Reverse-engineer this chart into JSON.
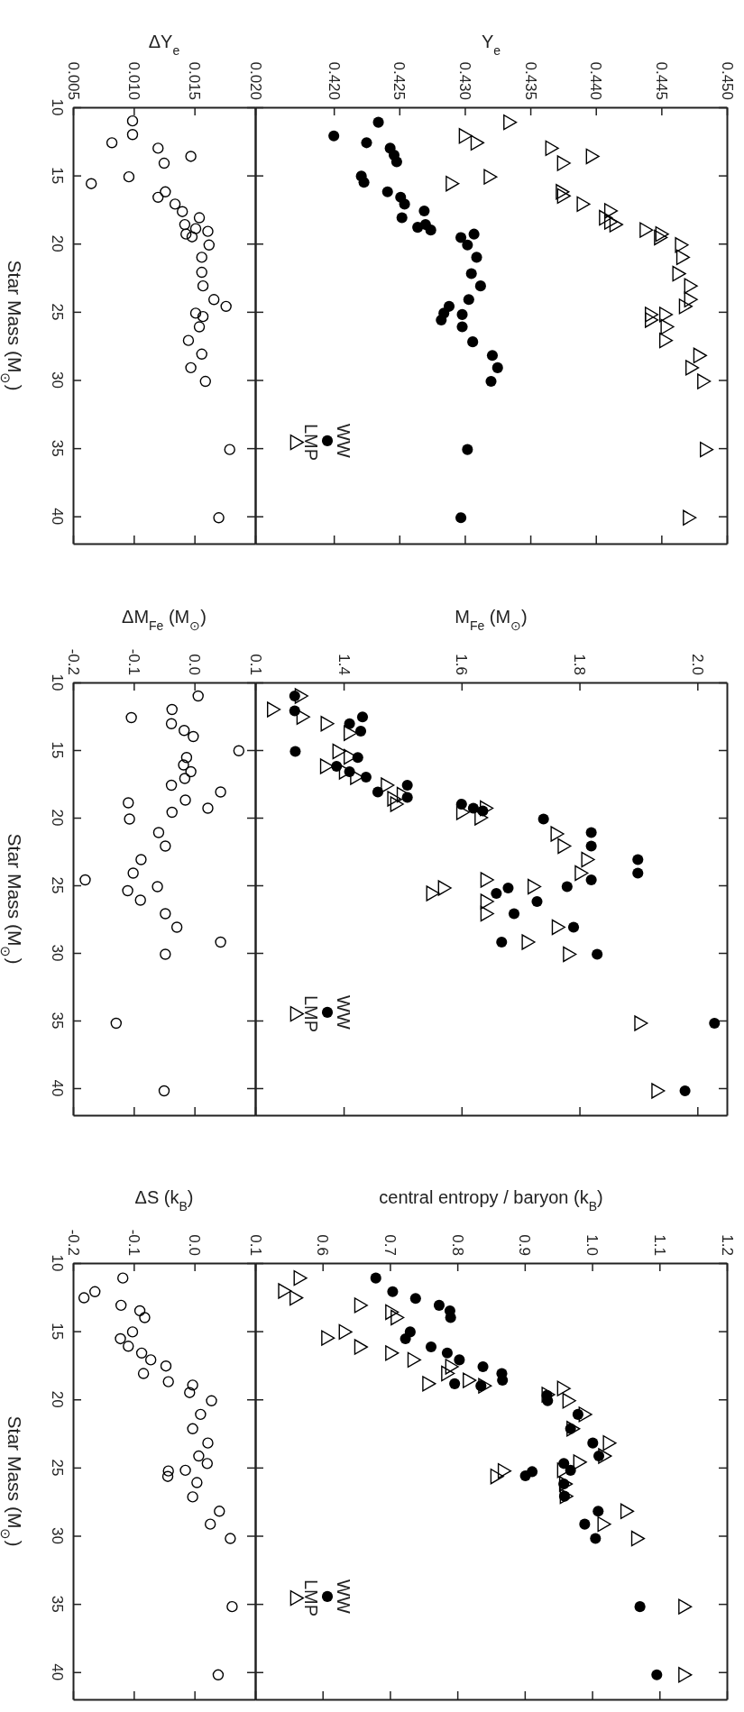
{
  "chart_data": [
    {
      "type": "scatter",
      "xlabel": "Y$_{e}$",
      "ylim": [
        42,
        10
      ],
      "yticks": [
        10,
        15,
        20,
        25,
        30,
        35,
        40
      ],
      "xlim": [
        0.414,
        0.45
      ],
      "xticks": [
        {
          "value": 0.42,
          "label": "0.420"
        },
        {
          "value": 0.425,
          "label": "0.425"
        },
        {
          "value": 0.43,
          "label": "0.430"
        },
        {
          "value": 0.435,
          "label": "0.435"
        },
        {
          "value": 0.44,
          "label": "0.440"
        },
        {
          "value": 0.445,
          "label": "0.445"
        },
        {
          "value": 0.45,
          "label": "0.450"
        }
      ],
      "tick_labels": "x",
      "legend": "bottom left",
      "series": [
        {
          "name": "WW",
          "color": "#000000",
          "marker": "circle",
          "values": [
            11.1,
            12.1,
            12.6,
            13.0,
            13.5,
            14.0,
            15.05,
            15.5,
            16.2,
            16.6,
            17.1,
            17.6,
            18.1,
            18.6,
            18.8,
            19.0,
            19.3,
            19.55,
            20.1,
            21.0,
            22.2,
            23.1,
            24.1,
            24.6,
            25.1,
            25.2,
            25.6,
            26.1,
            27.2,
            28.2,
            29.1,
            30.1,
            35.1,
            40.1
          ],
          "x": [
            0.4234,
            0.42,
            0.4225,
            0.4243,
            0.4246,
            0.4248,
            0.4221,
            0.4223,
            0.4241,
            0.4251,
            0.4254,
            0.4269,
            0.4252,
            0.427,
            0.4264,
            0.4274,
            0.4307,
            0.4297,
            0.4302,
            0.4309,
            0.4305,
            0.4312,
            0.4303,
            0.4288,
            0.4284,
            0.4298,
            0.4282,
            0.4298,
            0.4306,
            0.4321,
            0.4325,
            0.432,
            0.4302,
            0.4297
          ]
        },
        {
          "name": "LMP",
          "color": "#000000",
          "marker": "triangle",
          "values": [
            11.1,
            12.1,
            12.6,
            13.0,
            13.6,
            14.1,
            15.1,
            15.6,
            16.2,
            16.5,
            17.1,
            17.6,
            18.1,
            18.4,
            18.6,
            19.0,
            19.3,
            19.55,
            20.1,
            21.0,
            22.2,
            23.1,
            24.1,
            24.6,
            25.2,
            25.2,
            25.6,
            26.1,
            27.1,
            28.2,
            29.1,
            30.1,
            35.1,
            40.1
          ],
          "x": [
            0.4333,
            0.4299,
            0.4308,
            0.4365,
            0.4396,
            0.4374,
            0.4318,
            0.4289,
            0.4373,
            0.4374,
            0.4389,
            0.441,
            0.4406,
            0.441,
            0.4414,
            0.4437,
            0.4449,
            0.4448,
            0.4464,
            0.4465,
            0.4462,
            0.4471,
            0.4471,
            0.4467,
            0.4452,
            0.4441,
            0.4441,
            0.4453,
            0.4452,
            0.4478,
            0.4472,
            0.4481,
            0.4483,
            0.447
          ]
        }
      ]
    },
    {
      "type": "scatter",
      "ylabel": "Star Mass (M$_{⊙}$)",
      "xlabel": "ΔY$_{e}$",
      "ylim": [
        42,
        10
      ],
      "yticks": [
        10,
        15,
        20,
        25,
        30,
        35,
        40
      ],
      "xlim": [
        0.005,
        0.02
      ],
      "xticks": [
        {
          "value": 0.005,
          "label": "0.005"
        },
        {
          "value": 0.01,
          "label": "0.010"
        },
        {
          "value": 0.015,
          "label": "0.015"
        },
        {
          "value": 0.02,
          "label": "0.020"
        }
      ],
      "series": [
        {
          "color": "#000000",
          "marker": "circle",
          "values": [
            11.0,
            12.0,
            12.6,
            13.0,
            13.6,
            14.1,
            15.1,
            15.6,
            16.2,
            16.6,
            17.1,
            17.65,
            18.1,
            18.6,
            18.9,
            19.1,
            19.3,
            19.5,
            20.1,
            21.0,
            22.1,
            23.1,
            24.1,
            24.6,
            25.1,
            25.35,
            26.1,
            27.1,
            28.1,
            29.1,
            30.1,
            35.1,
            40.1
          ],
          "x": [
            0.0099,
            0.0099,
            0.0082,
            0.012,
            0.0147,
            0.0125,
            0.0096,
            0.0065,
            0.0126,
            0.012,
            0.0134,
            0.014,
            0.0154,
            0.0142,
            0.0151,
            0.0161,
            0.0143,
            0.0148,
            0.0162,
            0.0156,
            0.0156,
            0.0157,
            0.0166,
            0.0176,
            0.0151,
            0.0157,
            0.0154,
            0.0145,
            0.0156,
            0.0147,
            0.0159,
            0.0179,
            0.017
          ]
        }
      ]
    },
    {
      "type": "scatter",
      "xlabel": "M$_{Fe}$ (M$_{⊙}$)",
      "ylim": [
        42,
        10
      ],
      "yticks": [
        10,
        15,
        20,
        25,
        30,
        35,
        40
      ],
      "xlim": [
        1.25,
        2.05
      ],
      "xticks": [
        1.4,
        1.6,
        1.8,
        {
          "value": 2,
          "label": "2.0"
        }
      ],
      "tick_labels": "x",
      "legend": "bottom left",
      "series": [
        {
          "name": "WW",
          "color": "#000000",
          "marker": "circle",
          "values": [
            11.0,
            12.1,
            12.55,
            13.05,
            13.6,
            15.1,
            15.55,
            16.2,
            16.6,
            17.0,
            17.6,
            18.1,
            18.5,
            19.0,
            19.3,
            19.5,
            20.1,
            21.1,
            22.1,
            23.1,
            24.1,
            24.6,
            25.1,
            25.2,
            25.6,
            26.2,
            27.1,
            28.1,
            29.2,
            30.1,
            35.2,
            40.2
          ],
          "x": [
            1.317,
            1.317,
            1.432,
            1.41,
            1.429,
            1.318,
            1.424,
            1.388,
            1.41,
            1.438,
            1.508,
            1.458,
            1.508,
            1.6,
            1.62,
            1.636,
            1.739,
            1.82,
            1.82,
            1.899,
            1.899,
            1.82,
            1.779,
            1.679,
            1.659,
            1.728,
            1.689,
            1.79,
            1.668,
            1.83,
            2.029,
            1.979
          ]
        },
        {
          "name": "LMP",
          "color": "#000000",
          "marker": "triangle",
          "values": [
            11.0,
            12.0,
            12.55,
            13.05,
            13.75,
            15.1,
            15.5,
            16.2,
            16.6,
            17.0,
            17.6,
            18.3,
            18.6,
            19.0,
            19.3,
            19.6,
            20.0,
            21.2,
            22.1,
            23.1,
            24.1,
            24.6,
            25.1,
            25.2,
            25.6,
            26.2,
            27.1,
            28.1,
            29.2,
            30.1,
            35.2,
            40.2
          ],
          "x": [
            1.325,
            1.278,
            1.328,
            1.369,
            1.408,
            1.389,
            1.408,
            1.368,
            1.4,
            1.419,
            1.471,
            1.498,
            1.482,
            1.487,
            1.639,
            1.599,
            1.63,
            1.759,
            1.771,
            1.811,
            1.8,
            1.64,
            1.72,
            1.568,
            1.548,
            1.64,
            1.64,
            1.761,
            1.71,
            1.78,
            1.901,
            1.93
          ]
        }
      ]
    },
    {
      "type": "scatter",
      "ylabel": "Star Mass (M$_{⊙}$)",
      "xlabel": "ΔM$_{Fe}$ (M$_{⊙}$)",
      "ylim": [
        42,
        10
      ],
      "yticks": [
        10,
        15,
        20,
        25,
        30,
        35,
        40
      ],
      "xlim": [
        -0.2,
        0.1
      ],
      "xticks": [
        {
          "value": -0.2,
          "label": "-0.2"
        },
        {
          "value": -0.1,
          "label": "-0.1"
        },
        {
          "value": 0,
          "label": "0.0"
        },
        {
          "value": 0.1,
          "label": "0.1"
        }
      ],
      "series": [
        {
          "color": "#000000",
          "marker": "circle",
          "values": [
            11.0,
            12.0,
            12.6,
            13.05,
            13.55,
            14.0,
            15.05,
            15.55,
            16.1,
            16.6,
            17.1,
            17.6,
            18.1,
            18.7,
            18.9,
            19.3,
            19.6,
            20.1,
            21.1,
            22.1,
            23.1,
            24.1,
            24.6,
            25.1,
            25.4,
            26.1,
            27.1,
            28.1,
            29.2,
            30.1,
            35.2,
            40.2
          ],
          "x": [
            0.006,
            -0.037,
            -0.104,
            -0.038,
            -0.017,
            -0.002,
            0.073,
            -0.013,
            -0.018,
            -0.006,
            -0.016,
            -0.038,
            0.043,
            -0.015,
            -0.109,
            0.022,
            -0.037,
            -0.107,
            -0.059,
            -0.048,
            -0.088,
            -0.101,
            -0.18,
            -0.061,
            -0.11,
            -0.089,
            -0.048,
            -0.029,
            0.043,
            -0.048,
            -0.129,
            -0.05
          ]
        }
      ]
    },
    {
      "type": "scatter",
      "xlabel": "central entropy / baryon  (k$_{B}$)",
      "ylim": [
        42,
        10
      ],
      "yticks": [
        10,
        15,
        20,
        25,
        30,
        35,
        40
      ],
      "xlim": [
        0.5,
        1.2
      ],
      "xticks": [
        0.6,
        0.7,
        0.8,
        0.9,
        {
          "value": 1,
          "label": "1.0"
        },
        1.1,
        1.2
      ],
      "tick_labels": "x",
      "legend": "bottom left",
      "series": [
        {
          "name": "WW",
          "color": "#000000",
          "marker": "circle",
          "values": [
            11.1,
            12.1,
            12.6,
            13.1,
            13.5,
            14.0,
            15.05,
            15.55,
            16.15,
            16.6,
            17.1,
            17.6,
            18.1,
            18.6,
            18.85,
            19.0,
            19.7,
            20.1,
            21.1,
            22.15,
            23.2,
            24.15,
            24.7,
            25.2,
            25.3,
            25.6,
            26.2,
            27.1,
            28.2,
            29.15,
            30.2,
            35.2,
            40.2
          ],
          "x": [
            0.679,
            0.704,
            0.738,
            0.773,
            0.789,
            0.79,
            0.73,
            0.723,
            0.761,
            0.785,
            0.803,
            0.838,
            0.866,
            0.867,
            0.796,
            0.835,
            0.933,
            0.934,
            0.979,
            0.968,
            1.001,
            1.01,
            0.958,
            0.968,
            0.911,
            0.901,
            0.958,
            0.959,
            1.009,
            0.989,
            1.005,
            1.071,
            1.096
          ]
        },
        {
          "name": "LMP",
          "color": "#000000",
          "marker": "triangle",
          "values": [
            11.1,
            12.05,
            12.55,
            13.1,
            13.6,
            14.0,
            15.05,
            15.5,
            16.15,
            16.6,
            17.1,
            17.6,
            18.1,
            18.6,
            18.85,
            19.0,
            19.2,
            19.65,
            20.1,
            21.1,
            22.15,
            23.2,
            24.15,
            24.6,
            25.2,
            25.25,
            25.65,
            26.2,
            27.1,
            28.2,
            29.15,
            30.2,
            35.2,
            40.2
          ],
          "x": [
            0.564,
            0.541,
            0.558,
            0.654,
            0.7,
            0.708,
            0.631,
            0.605,
            0.654,
            0.7,
            0.733,
            0.789,
            0.783,
            0.815,
            0.755,
            0.838,
            0.955,
            0.932,
            0.963,
            0.987,
            0.969,
            1.023,
            1.016,
            0.979,
            0.955,
            0.867,
            0.856,
            0.958,
            0.959,
            1.049,
            1.015,
            1.065,
            1.135,
            1.135
          ]
        }
      ]
    },
    {
      "type": "scatter",
      "ylabel": "Star Mass (M$_{⊙}$)",
      "xlabel": "ΔS (k$_{B}$)",
      "ylim": [
        42,
        10
      ],
      "yticks": [
        10,
        15,
        20,
        25,
        30,
        35,
        40
      ],
      "xlim": [
        -0.2,
        0.1
      ],
      "xticks": [
        {
          "value": -0.2,
          "label": "-0.2"
        },
        {
          "value": -0.1,
          "label": "-0.1"
        },
        {
          "value": 0,
          "label": "0.0"
        },
        {
          "value": 0.1,
          "label": "0.1"
        }
      ],
      "series": [
        {
          "color": "#000000",
          "marker": "circle",
          "values": [
            11.1,
            12.1,
            12.55,
            13.1,
            13.5,
            14.0,
            15.05,
            15.55,
            16.1,
            16.6,
            17.1,
            17.55,
            18.1,
            18.7,
            18.95,
            19.5,
            20.1,
            21.1,
            22.15,
            23.2,
            24.15,
            24.7,
            25.2,
            25.25,
            25.65,
            26.1,
            27.15,
            28.2,
            29.15,
            30.2,
            35.2,
            40.2
          ],
          "x": [
            -0.118,
            -0.164,
            -0.182,
            -0.121,
            -0.09,
            -0.082,
            -0.102,
            -0.122,
            -0.109,
            -0.087,
            -0.072,
            -0.047,
            -0.084,
            -0.043,
            -0.003,
            -0.008,
            0.028,
            0.01,
            -0.003,
            0.022,
            0.007,
            0.021,
            -0.015,
            -0.043,
            -0.044,
            0.004,
            -0.003,
            0.041,
            0.026,
            0.059,
            0.062,
            0.039
          ]
        }
      ]
    }
  ]
}
